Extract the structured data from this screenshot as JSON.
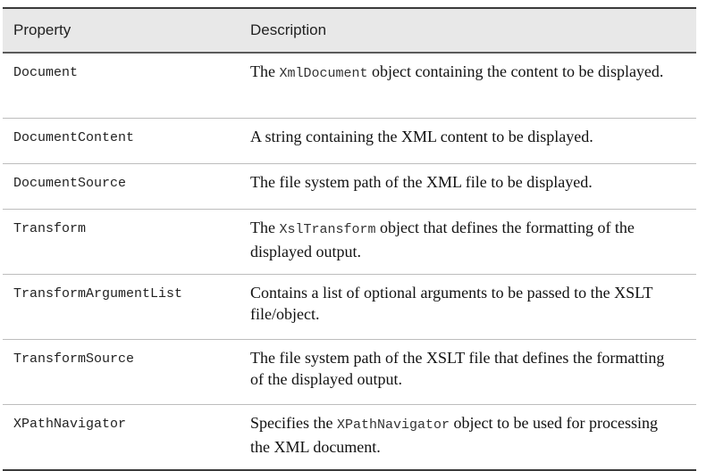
{
  "table": {
    "headers": {
      "property": "Property",
      "description": "Description"
    },
    "rows": [
      {
        "property": "Document",
        "desc_pre": "The ",
        "desc_code": "XmlDocument",
        "desc_post": " object containing the content to be displayed."
      },
      {
        "property": "DocumentContent",
        "desc_pre": "A string containing the XML content to be displayed.",
        "desc_code": "",
        "desc_post": ""
      },
      {
        "property": "DocumentSource",
        "desc_pre": "The file system path of the XML file to be displayed.",
        "desc_code": "",
        "desc_post": ""
      },
      {
        "property": "Transform",
        "desc_pre": "The ",
        "desc_code": "XslTransform",
        "desc_post": " object that defines the formatting of the displayed output."
      },
      {
        "property": "TransformArgumentList",
        "desc_pre": "Contains a list of optional arguments to be passed to the XSLT file/object.",
        "desc_code": "",
        "desc_post": ""
      },
      {
        "property": "TransformSource",
        "desc_pre": "The file system path of the XSLT file that defines the formatting of the displayed output.",
        "desc_code": "",
        "desc_post": ""
      },
      {
        "property": "XPathNavigator",
        "desc_pre": "Specifies the ",
        "desc_code": "XPathNavigator",
        "desc_post": " object to be used for processing the XML document."
      }
    ]
  }
}
